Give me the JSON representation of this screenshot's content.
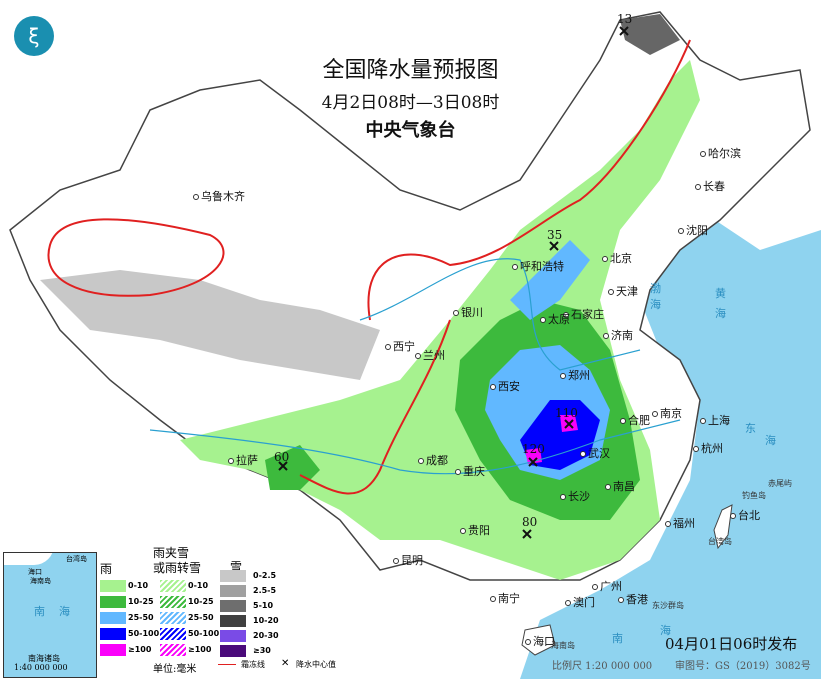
{
  "title": "全国降水量预报图",
  "subtitle": "4月2日08时—3日08时",
  "agency": "中央气象台",
  "issued": "04月01日06时发布",
  "scale": "比例尺 1:20 000 000",
  "map_number": "审图号：GS（2019）3082号",
  "colors": {
    "sea": "#8fd3ef",
    "rain_0_10": "#a6f28f",
    "rain_10_25": "#3dba3d",
    "rain_25_50": "#61b8ff",
    "rain_50_100": "#0000fe",
    "rain_100": "#fa00fa",
    "frost_line": "#e02020",
    "snow_0_2_5": "#c8c8c8"
  },
  "cities": [
    "乌鲁木齐",
    "哈尔滨",
    "长春",
    "沈阳",
    "呼和浩特",
    "北京",
    "天津",
    "石家庄",
    "太原",
    "银川",
    "西宁",
    "兰州",
    "济南",
    "西安",
    "郑州",
    "合肥",
    "南京",
    "上海",
    "杭州",
    "武汉",
    "成都",
    "重庆",
    "拉萨",
    "长沙",
    "南昌",
    "贵阳",
    "昆明",
    "福州",
    "台北",
    "南宁",
    "广州",
    "香港",
    "澳门",
    "海口"
  ],
  "islands": [
    "台湾岛",
    "钓鱼岛",
    "赤尾屿",
    "东沙群岛",
    "海南岛"
  ],
  "seas": [
    "渤",
    "海",
    "黄",
    "海",
    "东",
    "海",
    "南",
    "海"
  ],
  "centers": [
    {
      "value": "13"
    },
    {
      "value": "35"
    },
    {
      "value": "110"
    },
    {
      "value": "120"
    },
    {
      "value": "60"
    },
    {
      "value": "80"
    }
  ],
  "legend": {
    "rain_title": "雨",
    "mixed_title": "雨夹雪\n或雨转雪",
    "snow_title": "雪",
    "rain": [
      "0-10",
      "10-25",
      "25-50",
      "50-100",
      "≥100"
    ],
    "mixed": [
      "0-10",
      "10-25",
      "25-50",
      "50-100",
      "≥100"
    ],
    "snow": [
      "0-2.5",
      "2.5-5",
      "5-10",
      "10-20",
      "20-30",
      "≥30"
    ],
    "unit": "单位:毫米",
    "frost_line": "霜冻线",
    "center": "降水中心值"
  },
  "inset": {
    "labels": [
      "南",
      "海",
      "海口",
      "海南岛",
      "台湾岛",
      "南海诸岛"
    ],
    "scale": "1:40 000 000"
  }
}
